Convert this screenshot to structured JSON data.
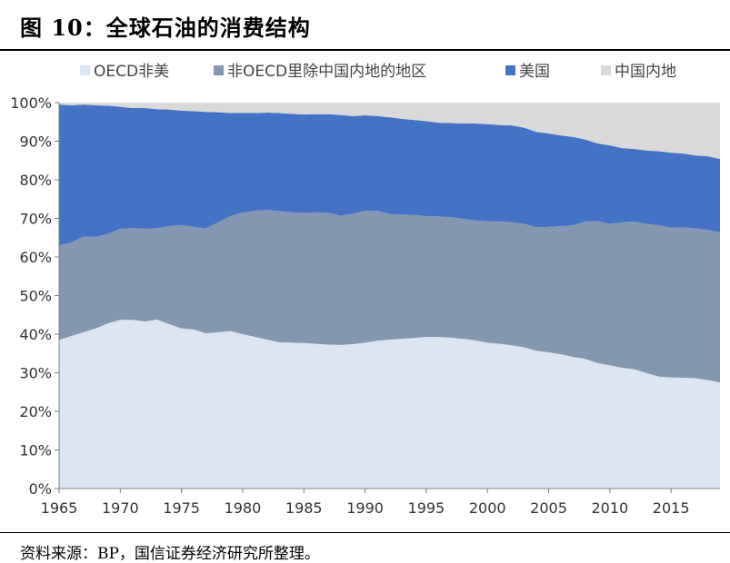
{
  "header": {
    "title": "图 10：全球石油的消费结构"
  },
  "footer": {
    "source": "资料来源：BP，国信证券经济研究所整理。"
  },
  "chart_data": {
    "type": "area",
    "stacked": true,
    "title": "",
    "xlabel": "",
    "ylabel": "",
    "xlim": [
      1965,
      2019
    ],
    "ylim": [
      0,
      100
    ],
    "x": [
      1965,
      1966,
      1967,
      1968,
      1969,
      1970,
      1971,
      1972,
      1973,
      1974,
      1975,
      1976,
      1977,
      1978,
      1979,
      1980,
      1981,
      1982,
      1983,
      1984,
      1985,
      1986,
      1987,
      1988,
      1989,
      1990,
      1991,
      1992,
      1993,
      1994,
      1995,
      1996,
      1997,
      1998,
      1999,
      2000,
      2001,
      2002,
      2003,
      2004,
      2005,
      2006,
      2007,
      2008,
      2009,
      2010,
      2011,
      2012,
      2013,
      2014,
      2015,
      2016,
      2017,
      2018,
      2019
    ],
    "x_ticks": [
      "1965",
      "1970",
      "1975",
      "1980",
      "1985",
      "1990",
      "1995",
      "2000",
      "2005",
      "2010",
      "2015"
    ],
    "x_tick_values": [
      1965,
      1970,
      1975,
      1980,
      1985,
      1990,
      1995,
      2000,
      2005,
      2010,
      2015
    ],
    "y_ticks": [
      "0%",
      "10%",
      "20%",
      "30%",
      "40%",
      "50%",
      "60%",
      "70%",
      "80%",
      "90%",
      "100%"
    ],
    "y_tick_values": [
      0,
      10,
      20,
      30,
      40,
      50,
      60,
      70,
      80,
      90,
      100
    ],
    "grid": false,
    "legend_position": "top",
    "series": [
      {
        "name": "OECD非美",
        "color": "#dce6f2",
        "values": [
          38.5,
          39.5,
          40.5,
          41.5,
          42.8,
          43.7,
          43.7,
          43.3,
          43.8,
          42.6,
          41.5,
          41.2,
          40.2,
          40.5,
          40.8,
          40.0,
          39.3,
          38.6,
          37.9,
          37.8,
          37.7,
          37.5,
          37.3,
          37.2,
          37.4,
          37.8,
          38.3,
          38.6,
          38.8,
          39.0,
          39.3,
          39.3,
          39.1,
          38.8,
          38.4,
          37.8,
          37.5,
          37.1,
          36.6,
          35.7,
          35.3,
          34.8,
          34.1,
          33.6,
          32.5,
          31.9,
          31.3,
          30.9,
          29.9,
          29.0,
          28.8,
          28.7,
          28.6,
          28.1,
          27.5
        ]
      },
      {
        "name": "非OECD里除中国内地的地区",
        "color": "#8497b0",
        "values": [
          24.5,
          24.3,
          24.8,
          23.7,
          23.2,
          23.6,
          23.8,
          24.0,
          23.7,
          25.4,
          26.7,
          26.6,
          27.2,
          28.5,
          29.8,
          31.5,
          32.7,
          33.6,
          34.0,
          33.8,
          33.7,
          34.1,
          34.1,
          33.5,
          33.8,
          34.2,
          33.7,
          32.5,
          32.2,
          31.9,
          31.3,
          31.2,
          31.2,
          31.1,
          31.1,
          31.4,
          31.7,
          31.9,
          32.0,
          32.0,
          32.5,
          33.2,
          34.1,
          35.6,
          36.8,
          36.7,
          37.7,
          38.3,
          38.7,
          39.2,
          38.8,
          39.0,
          38.8,
          38.9,
          38.9
        ]
      },
      {
        "name": "美国",
        "color": "#4472c4",
        "values": [
          36.5,
          35.5,
          34.2,
          34.1,
          33.2,
          31.6,
          31.1,
          31.3,
          30.8,
          30.2,
          29.7,
          30.0,
          30.2,
          28.5,
          26.7,
          25.8,
          25.3,
          25.2,
          25.4,
          25.5,
          25.5,
          25.4,
          25.6,
          26.1,
          25.3,
          24.7,
          24.5,
          25.1,
          24.8,
          24.6,
          24.6,
          24.3,
          24.4,
          24.7,
          25.1,
          25.2,
          25.0,
          25.1,
          24.9,
          24.7,
          24.2,
          23.5,
          22.9,
          21.2,
          20.1,
          20.3,
          19.2,
          18.8,
          19.0,
          19.2,
          19.4,
          19.1,
          18.9,
          19.1,
          19.0
        ]
      },
      {
        "name": "中国内地",
        "color": "#d9d9d9",
        "values": [
          0.5,
          0.7,
          0.5,
          0.7,
          0.8,
          1.1,
          1.4,
          1.4,
          1.7,
          1.8,
          2.1,
          2.2,
          2.4,
          2.5,
          2.7,
          2.7,
          2.7,
          2.6,
          2.7,
          2.9,
          3.1,
          3.0,
          3.0,
          3.2,
          3.5,
          3.3,
          3.5,
          3.8,
          4.2,
          4.5,
          4.8,
          5.2,
          5.3,
          5.4,
          5.4,
          5.6,
          5.8,
          5.9,
          6.5,
          7.6,
          8.0,
          8.5,
          8.9,
          9.6,
          10.6,
          11.1,
          11.8,
          12.0,
          12.4,
          12.6,
          13.0,
          13.2,
          13.7,
          13.9,
          14.6
        ]
      }
    ]
  }
}
